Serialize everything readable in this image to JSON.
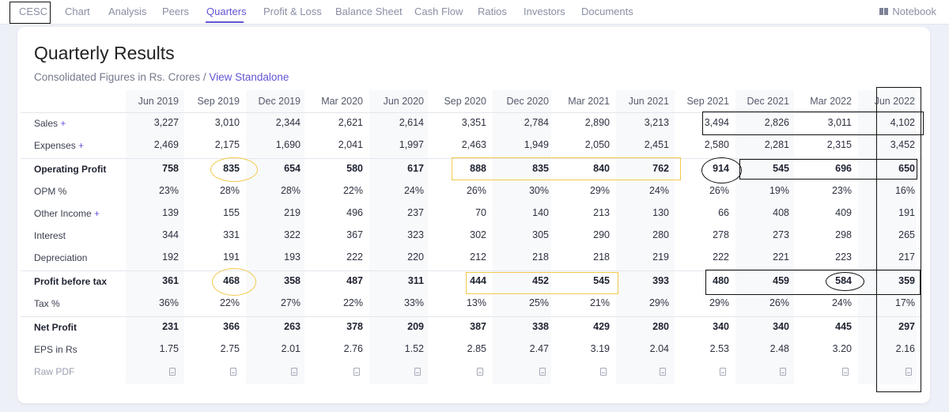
{
  "nav": {
    "brand": "CESC",
    "items": [
      "Chart",
      "Analysis",
      "Peers",
      "Quarters",
      "Profit & Loss",
      "Balance Sheet",
      "Cash Flow",
      "Ratios",
      "Investors",
      "Documents"
    ],
    "active": "Quarters",
    "notebook_label": "Notebook",
    "accent_color": "#6055d4"
  },
  "section": {
    "title": "Quarterly Results",
    "subtitle": "Consolidated Figures in Rs. Crores",
    "separator": " / ",
    "link": "View Standalone"
  },
  "table": {
    "columns": [
      "Jun 2019",
      "Sep 2019",
      "Dec 2019",
      "Mar 2020",
      "Jun 2020",
      "Sep 2020",
      "Dec 2020",
      "Mar 2021",
      "Jun 2021",
      "Sep 2021",
      "Dec 2021",
      "Mar 2022",
      "Jun 2022"
    ],
    "rows": [
      {
        "label": "Sales",
        "expandable": true,
        "bold": false,
        "values": [
          "3,227",
          "3,010",
          "2,344",
          "2,621",
          "2,614",
          "3,351",
          "2,784",
          "2,890",
          "3,213",
          "3,494",
          "2,826",
          "3,011",
          "4,102"
        ]
      },
      {
        "label": "Expenses",
        "expandable": true,
        "bold": false,
        "values": [
          "2,469",
          "2,175",
          "1,690",
          "2,041",
          "1,997",
          "2,463",
          "1,949",
          "2,050",
          "2,451",
          "2,580",
          "2,281",
          "2,315",
          "3,452"
        ]
      },
      {
        "label": "Operating Profit",
        "expandable": false,
        "bold": true,
        "values": [
          "758",
          "835",
          "654",
          "580",
          "617",
          "888",
          "835",
          "840",
          "762",
          "914",
          "545",
          "696",
          "650"
        ]
      },
      {
        "label": "OPM %",
        "expandable": false,
        "bold": false,
        "values": [
          "23%",
          "28%",
          "28%",
          "22%",
          "24%",
          "26%",
          "30%",
          "29%",
          "24%",
          "26%",
          "19%",
          "23%",
          "16%"
        ]
      },
      {
        "label": "Other Income",
        "expandable": true,
        "bold": false,
        "values": [
          "139",
          "155",
          "219",
          "496",
          "237",
          "70",
          "140",
          "213",
          "130",
          "66",
          "408",
          "409",
          "191"
        ]
      },
      {
        "label": "Interest",
        "expandable": false,
        "bold": false,
        "values": [
          "344",
          "331",
          "322",
          "367",
          "323",
          "302",
          "305",
          "290",
          "280",
          "278",
          "273",
          "298",
          "265"
        ]
      },
      {
        "label": "Depreciation",
        "expandable": false,
        "bold": false,
        "values": [
          "192",
          "191",
          "193",
          "222",
          "220",
          "212",
          "218",
          "218",
          "219",
          "222",
          "221",
          "223",
          "217"
        ]
      },
      {
        "label": "Profit before tax",
        "expandable": false,
        "bold": true,
        "values": [
          "361",
          "468",
          "358",
          "487",
          "311",
          "444",
          "452",
          "545",
          "393",
          "480",
          "459",
          "584",
          "359"
        ]
      },
      {
        "label": "Tax %",
        "expandable": false,
        "bold": false,
        "values": [
          "36%",
          "22%",
          "27%",
          "22%",
          "33%",
          "13%",
          "25%",
          "21%",
          "29%",
          "29%",
          "26%",
          "24%",
          "17%"
        ]
      },
      {
        "label": "Net Profit",
        "expandable": false,
        "bold": true,
        "values": [
          "231",
          "366",
          "263",
          "378",
          "209",
          "387",
          "338",
          "429",
          "280",
          "340",
          "340",
          "445",
          "297"
        ]
      },
      {
        "label": "EPS in Rs",
        "expandable": false,
        "bold": false,
        "values": [
          "1.75",
          "2.75",
          "2.01",
          "2.76",
          "1.52",
          "2.85",
          "2.47",
          "3.19",
          "2.04",
          "2.53",
          "2.48",
          "3.20",
          "2.16"
        ]
      }
    ],
    "raw_pdf_label": "Raw PDF",
    "plus_symbol": "+"
  },
  "colors": {
    "annotation_black": "#111111",
    "annotation_yellow": "#f2c94c"
  }
}
